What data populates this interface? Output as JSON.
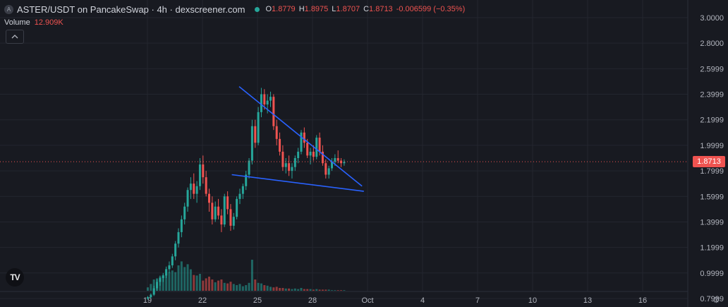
{
  "header": {
    "symbol_badge": "A",
    "title": "ASTER/USDT on PancakeSwap · 4h · dexscreener.com",
    "ohlc": [
      {
        "k": "O",
        "v": "1.8779"
      },
      {
        "k": "H",
        "v": "1.8975"
      },
      {
        "k": "L",
        "v": "1.8707"
      },
      {
        "k": "C",
        "v": "1.8713"
      }
    ],
    "change": "-0.006599 (−0.35%)",
    "volume_label": "Volume",
    "volume_value": "12.909K",
    "collapse_icon": "chevron-up-icon"
  },
  "logo_text": "TV",
  "current_price": "1.8713",
  "settings_icon": "gear-icon",
  "colors": {
    "up": "#26a69a",
    "down": "#ef5350",
    "trendline": "#2962ff",
    "background": "#181a21",
    "grid": "#23262f"
  },
  "chart_data": {
    "type": "candlestick",
    "yticks": [
      "3.0000",
      "2.8000",
      "2.5999",
      "2.3999",
      "2.1999",
      "1.9999",
      "1.7999",
      "1.5999",
      "1.3999",
      "1.1999",
      "0.9999",
      "0.7999"
    ],
    "ytick_values": [
      3.0,
      2.8,
      2.6,
      2.4,
      2.2,
      2.0,
      1.8,
      1.6,
      1.4,
      1.2,
      1.0,
      0.8
    ],
    "xticks": [
      "19",
      "22",
      "25",
      "28",
      "Oct",
      "4",
      "7",
      "10",
      "13",
      "16"
    ],
    "ylim": [
      0.75,
      3.05
    ],
    "current_price": 1.8713,
    "candles": [
      [
        0.8,
        0.82,
        0.79,
        0.81
      ],
      [
        0.81,
        0.84,
        0.8,
        0.83
      ],
      [
        0.83,
        0.9,
        0.82,
        0.88
      ],
      [
        0.88,
        0.95,
        0.86,
        0.93
      ],
      [
        0.93,
        0.98,
        0.9,
        0.96
      ],
      [
        0.96,
        1.0,
        0.93,
        0.98
      ],
      [
        0.98,
        1.05,
        0.96,
        1.03
      ],
      [
        1.03,
        1.09,
        1.0,
        1.06
      ],
      [
        1.06,
        1.15,
        1.04,
        1.13
      ],
      [
        1.13,
        1.25,
        1.1,
        1.23
      ],
      [
        1.23,
        1.35,
        1.2,
        1.32
      ],
      [
        1.32,
        1.45,
        1.28,
        1.42
      ],
      [
        1.42,
        1.55,
        1.38,
        1.52
      ],
      [
        1.52,
        1.67,
        1.48,
        1.65
      ],
      [
        1.65,
        1.75,
        1.58,
        1.7
      ],
      [
        1.7,
        1.78,
        1.58,
        1.62
      ],
      [
        1.62,
        1.72,
        1.55,
        1.68
      ],
      [
        1.68,
        1.9,
        1.65,
        1.85
      ],
      [
        1.85,
        1.92,
        1.7,
        1.75
      ],
      [
        1.75,
        1.8,
        1.6,
        1.62
      ],
      [
        1.62,
        1.66,
        1.48,
        1.55
      ],
      [
        1.55,
        1.6,
        1.38,
        1.42
      ],
      [
        1.42,
        1.56,
        1.4,
        1.52
      ],
      [
        1.52,
        1.58,
        1.42,
        1.45
      ],
      [
        1.45,
        1.5,
        1.32,
        1.38
      ],
      [
        1.38,
        1.62,
        1.36,
        1.6
      ],
      [
        1.6,
        1.64,
        1.46,
        1.5
      ],
      [
        1.5,
        1.54,
        1.33,
        1.37
      ],
      [
        1.37,
        1.47,
        1.34,
        1.44
      ],
      [
        1.44,
        1.6,
        1.42,
        1.58
      ],
      [
        1.58,
        1.66,
        1.54,
        1.62
      ],
      [
        1.62,
        1.7,
        1.58,
        1.68
      ],
      [
        1.68,
        1.8,
        1.65,
        1.77
      ],
      [
        1.77,
        1.9,
        1.74,
        1.88
      ],
      [
        1.88,
        2.2,
        1.85,
        2.15
      ],
      [
        2.15,
        2.2,
        1.98,
        2.02
      ],
      [
        2.02,
        2.3,
        2.0,
        2.26
      ],
      [
        2.26,
        2.45,
        2.22,
        2.4
      ],
      [
        2.4,
        2.44,
        2.28,
        2.32
      ],
      [
        2.32,
        2.4,
        2.25,
        2.35
      ],
      [
        2.35,
        2.42,
        2.3,
        2.38
      ],
      [
        2.38,
        2.4,
        2.12,
        2.15
      ],
      [
        2.15,
        2.2,
        2.0,
        2.05
      ],
      [
        2.05,
        2.1,
        1.92,
        1.95
      ],
      [
        1.95,
        2.0,
        1.8,
        1.83
      ],
      [
        1.83,
        1.9,
        1.78,
        1.86
      ],
      [
        1.86,
        1.92,
        1.76,
        1.8
      ],
      [
        1.8,
        1.86,
        1.74,
        1.83
      ],
      [
        1.83,
        1.92,
        1.8,
        1.9
      ],
      [
        1.9,
        1.98,
        1.86,
        1.95
      ],
      [
        1.95,
        2.12,
        1.93,
        2.1
      ],
      [
        2.1,
        2.14,
        1.98,
        2.02
      ],
      [
        2.02,
        2.05,
        1.9,
        1.92
      ],
      [
        1.92,
        1.98,
        1.85,
        1.95
      ],
      [
        1.95,
        2.0,
        1.88,
        1.91
      ],
      [
        1.91,
        2.08,
        1.89,
        2.06
      ],
      [
        2.06,
        2.1,
        1.92,
        1.95
      ],
      [
        1.95,
        2.0,
        1.84,
        1.86
      ],
      [
        1.86,
        1.89,
        1.74,
        1.77
      ],
      [
        1.77,
        1.84,
        1.74,
        1.82
      ],
      [
        1.82,
        1.9,
        1.8,
        1.87
      ],
      [
        1.87,
        1.93,
        1.84,
        1.9
      ],
      [
        1.9,
        1.96,
        1.86,
        1.88
      ],
      [
        1.88,
        1.9,
        1.83,
        1.86
      ],
      [
        1.86,
        1.89,
        1.84,
        1.87
      ]
    ],
    "volumes": [
      0.06,
      0.12,
      0.2,
      0.22,
      0.25,
      0.28,
      0.3,
      0.33,
      0.36,
      0.33,
      0.45,
      0.52,
      0.42,
      0.47,
      0.38,
      0.28,
      0.27,
      0.3,
      0.18,
      0.22,
      0.25,
      0.2,
      0.15,
      0.18,
      0.2,
      0.14,
      0.13,
      0.16,
      0.12,
      0.1,
      0.12,
      0.08,
      0.1,
      0.14,
      0.55,
      0.2,
      0.14,
      0.13,
      0.1,
      0.09,
      0.07,
      0.06,
      0.07,
      0.05,
      0.05,
      0.04,
      0.04,
      0.03,
      0.04,
      0.03,
      0.05,
      0.03,
      0.03,
      0.03,
      0.02,
      0.03,
      0.02,
      0.02,
      0.02,
      0.02,
      0.01,
      0.01,
      0.01,
      0.01,
      0.01
    ],
    "trendlines": [
      {
        "name": "upper",
        "from": [
          24.0,
          2.46
        ],
        "to": [
          30.7,
          1.68
        ]
      },
      {
        "name": "lower",
        "from": [
          23.6,
          1.77
        ],
        "to": [
          30.8,
          1.64
        ]
      }
    ]
  }
}
